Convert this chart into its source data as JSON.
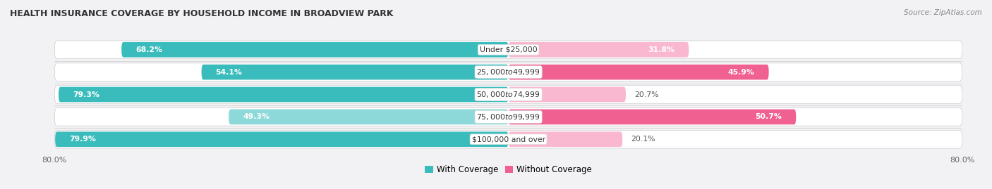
{
  "title": "HEALTH INSURANCE COVERAGE BY HOUSEHOLD INCOME IN BROADVIEW PARK",
  "source": "Source: ZipAtlas.com",
  "categories": [
    "Under $25,000",
    "$25,000 to $49,999",
    "$50,000 to $74,999",
    "$75,000 to $99,999",
    "$100,000 and over"
  ],
  "with_coverage": [
    68.2,
    54.1,
    79.3,
    49.3,
    79.9
  ],
  "without_coverage": [
    31.8,
    45.9,
    20.7,
    50.7,
    20.1
  ],
  "color_with_dark": "#3bbcbc",
  "color_with_light": "#8dd8d8",
  "color_without_dark": "#f06090",
  "color_without_light": "#f9b8cf",
  "xlim_left": -80.0,
  "xlim_right": 80.0,
  "x_left_label": "80.0%",
  "x_right_label": "80.0%",
  "bg_color": "#f2f2f5",
  "bar_bg_color": "#e8e8ee",
  "legend_with": "With Coverage",
  "legend_without": "Without Coverage",
  "title_fontsize": 9.0,
  "label_fontsize": 7.8,
  "source_fontsize": 7.5
}
